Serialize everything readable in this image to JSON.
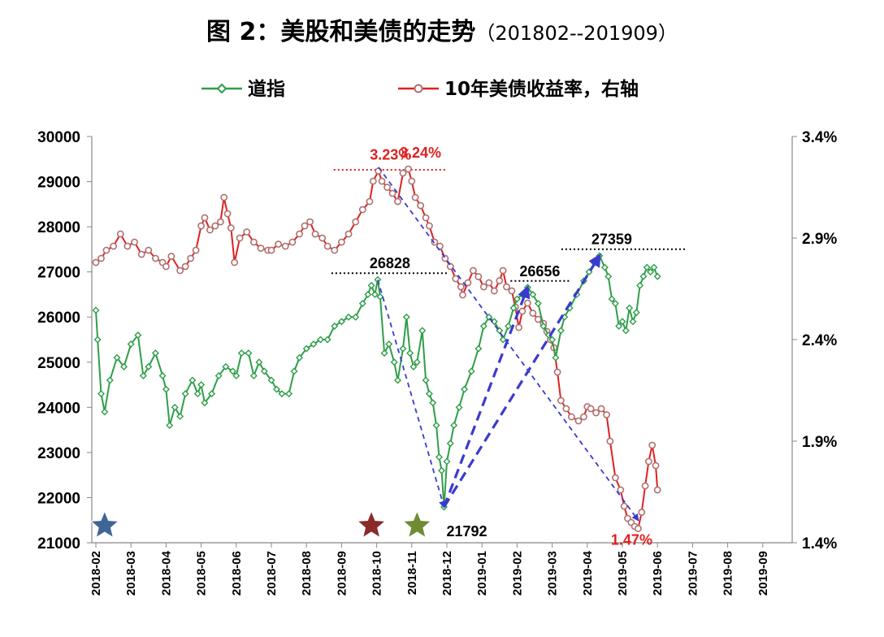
{
  "title": {
    "main": "图 2：美股和美债的走势",
    "sub": "（201802--201909）"
  },
  "chart_data": {
    "type": "line",
    "title": "图 2：美股和美债的走势（201802--201909）",
    "legend": [
      "道指",
      "10年美债收益率，右轴"
    ],
    "legend_position": "top",
    "x_labels": [
      "2018-02",
      "2018-03",
      "2018-04",
      "2018-05",
      "2018-06",
      "2018-07",
      "2018-08",
      "2018-09",
      "2018-10",
      "2018-11",
      "2018-12",
      "2019-01",
      "2019-02",
      "2019-03",
      "2019-04",
      "2019-05",
      "2019-06",
      "2019-07",
      "2019-08",
      "2019-09"
    ],
    "y_left": {
      "min": 21000,
      "max": 30000,
      "ticks": [
        "30000",
        "29000",
        "28000",
        "27000",
        "26000",
        "25000",
        "24000",
        "23000",
        "22000",
        "21000"
      ]
    },
    "y_right": {
      "min": 1.4,
      "max": 3.4,
      "ticks": [
        "3.4%",
        "2.9%",
        "2.4%",
        "1.9%",
        "1.4%"
      ]
    },
    "series": [
      {
        "name": "道指",
        "axis": "left",
        "color": "#2e9e48",
        "points": [
          [
            0,
            26150
          ],
          [
            0.05,
            25500
          ],
          [
            0.15,
            24300
          ],
          [
            0.25,
            23900
          ],
          [
            0.4,
            24600
          ],
          [
            0.6,
            25100
          ],
          [
            0.8,
            24900
          ],
          [
            1.0,
            25400
          ],
          [
            1.2,
            25600
          ],
          [
            1.35,
            24700
          ],
          [
            1.5,
            24900
          ],
          [
            1.7,
            25200
          ],
          [
            1.9,
            24700
          ],
          [
            2.0,
            24400
          ],
          [
            2.1,
            23600
          ],
          [
            2.25,
            24000
          ],
          [
            2.4,
            23800
          ],
          [
            2.55,
            24300
          ],
          [
            2.75,
            24600
          ],
          [
            2.9,
            24300
          ],
          [
            3.0,
            24500
          ],
          [
            3.1,
            24100
          ],
          [
            3.3,
            24300
          ],
          [
            3.5,
            24700
          ],
          [
            3.7,
            24900
          ],
          [
            3.9,
            24800
          ],
          [
            4.0,
            24700
          ],
          [
            4.15,
            25200
          ],
          [
            4.35,
            25200
          ],
          [
            4.5,
            24700
          ],
          [
            4.65,
            25000
          ],
          [
            4.8,
            24800
          ],
          [
            5.0,
            24600
          ],
          [
            5.15,
            24400
          ],
          [
            5.3,
            24300
          ],
          [
            5.5,
            24300
          ],
          [
            5.65,
            24800
          ],
          [
            5.8,
            25100
          ],
          [
            6.0,
            25300
          ],
          [
            6.2,
            25400
          ],
          [
            6.4,
            25500
          ],
          [
            6.6,
            25500
          ],
          [
            6.8,
            25800
          ],
          [
            7.0,
            25900
          ],
          [
            7.2,
            26000
          ],
          [
            7.4,
            26000
          ],
          [
            7.6,
            26300
          ],
          [
            7.75,
            26500
          ],
          [
            7.85,
            26700
          ],
          [
            7.95,
            26500
          ],
          [
            8.03,
            26828
          ],
          [
            8.1,
            26450
          ],
          [
            8.22,
            25200
          ],
          [
            8.35,
            25400
          ],
          [
            8.5,
            25000
          ],
          [
            8.6,
            24600
          ],
          [
            8.75,
            25300
          ],
          [
            8.85,
            26000
          ],
          [
            8.95,
            25200
          ],
          [
            9.05,
            24900
          ],
          [
            9.15,
            25000
          ],
          [
            9.3,
            25700
          ],
          [
            9.4,
            24600
          ],
          [
            9.5,
            24300
          ],
          [
            9.6,
            24100
          ],
          [
            9.7,
            23600
          ],
          [
            9.78,
            22900
          ],
          [
            9.85,
            22600
          ],
          [
            9.92,
            21792
          ],
          [
            10.0,
            22800
          ],
          [
            10.1,
            23200
          ],
          [
            10.2,
            23600
          ],
          [
            10.35,
            24000
          ],
          [
            10.5,
            24400
          ],
          [
            10.7,
            24800
          ],
          [
            10.9,
            25300
          ],
          [
            11.05,
            25800
          ],
          [
            11.2,
            26000
          ],
          [
            11.35,
            25900
          ],
          [
            11.5,
            25700
          ],
          [
            11.6,
            25500
          ],
          [
            11.75,
            25800
          ],
          [
            11.9,
            26200
          ],
          [
            12.0,
            26400
          ],
          [
            12.15,
            26500
          ],
          [
            12.3,
            26656
          ],
          [
            12.45,
            26500
          ],
          [
            12.6,
            26300
          ],
          [
            12.75,
            25800
          ],
          [
            12.9,
            25600
          ],
          [
            13.0,
            25500
          ],
          [
            13.1,
            25100
          ],
          [
            13.25,
            25700
          ],
          [
            13.35,
            26000
          ],
          [
            13.5,
            26200
          ],
          [
            13.7,
            26500
          ],
          [
            13.9,
            26800
          ],
          [
            14.05,
            27000
          ],
          [
            14.2,
            27200
          ],
          [
            14.35,
            27359
          ],
          [
            14.5,
            27100
          ],
          [
            14.6,
            26900
          ],
          [
            14.7,
            26400
          ],
          [
            14.8,
            26300
          ],
          [
            14.9,
            25800
          ],
          [
            15.0,
            25900
          ],
          [
            15.1,
            25700
          ],
          [
            15.2,
            26200
          ],
          [
            15.3,
            25900
          ],
          [
            15.4,
            26100
          ],
          [
            15.5,
            26700
          ],
          [
            15.6,
            26900
          ],
          [
            15.7,
            27100
          ],
          [
            15.8,
            27000
          ],
          [
            15.9,
            27100
          ],
          [
            16.0,
            26900
          ]
        ]
      },
      {
        "name": "10年美债收益率，右轴",
        "axis": "right",
        "color": "#e02020",
        "marker_color": "#b07070",
        "points": [
          [
            0,
            2.78
          ],
          [
            0.15,
            2.8
          ],
          [
            0.3,
            2.84
          ],
          [
            0.5,
            2.86
          ],
          [
            0.7,
            2.92
          ],
          [
            0.9,
            2.86
          ],
          [
            1.1,
            2.88
          ],
          [
            1.3,
            2.82
          ],
          [
            1.5,
            2.84
          ],
          [
            1.7,
            2.8
          ],
          [
            1.9,
            2.78
          ],
          [
            2.0,
            2.76
          ],
          [
            2.15,
            2.81
          ],
          [
            2.4,
            2.74
          ],
          [
            2.55,
            2.76
          ],
          [
            2.7,
            2.8
          ],
          [
            2.85,
            2.84
          ],
          [
            3.0,
            2.96
          ],
          [
            3.1,
            3.0
          ],
          [
            3.25,
            2.94
          ],
          [
            3.4,
            2.96
          ],
          [
            3.55,
            2.98
          ],
          [
            3.65,
            3.1
          ],
          [
            3.75,
            3.02
          ],
          [
            3.85,
            2.95
          ],
          [
            3.95,
            2.78
          ],
          [
            4.1,
            2.9
          ],
          [
            4.3,
            2.93
          ],
          [
            4.5,
            2.88
          ],
          [
            4.7,
            2.85
          ],
          [
            4.9,
            2.84
          ],
          [
            5.0,
            2.84
          ],
          [
            5.2,
            2.87
          ],
          [
            5.4,
            2.86
          ],
          [
            5.6,
            2.88
          ],
          [
            5.8,
            2.92
          ],
          [
            5.95,
            2.96
          ],
          [
            6.1,
            2.98
          ],
          [
            6.25,
            2.92
          ],
          [
            6.45,
            2.9
          ],
          [
            6.6,
            2.86
          ],
          [
            6.8,
            2.84
          ],
          [
            7.0,
            2.88
          ],
          [
            7.2,
            2.92
          ],
          [
            7.4,
            2.98
          ],
          [
            7.6,
            3.04
          ],
          [
            7.8,
            3.08
          ],
          [
            7.9,
            3.18
          ],
          [
            8.05,
            3.23
          ],
          [
            8.15,
            3.18
          ],
          [
            8.3,
            3.15
          ],
          [
            8.45,
            3.12
          ],
          [
            8.6,
            3.08
          ],
          [
            8.75,
            3.22
          ],
          [
            8.9,
            3.24
          ],
          [
            9.0,
            3.18
          ],
          [
            9.1,
            3.1
          ],
          [
            9.25,
            3.06
          ],
          [
            9.4,
            3.0
          ],
          [
            9.5,
            2.96
          ],
          [
            9.65,
            2.88
          ],
          [
            9.8,
            2.86
          ],
          [
            9.95,
            2.8
          ],
          [
            10.1,
            2.76
          ],
          [
            10.25,
            2.7
          ],
          [
            10.4,
            2.66
          ],
          [
            10.45,
            2.62
          ],
          [
            10.6,
            2.68
          ],
          [
            10.75,
            2.74
          ],
          [
            10.9,
            2.71
          ],
          [
            11.05,
            2.66
          ],
          [
            11.2,
            2.68
          ],
          [
            11.35,
            2.64
          ],
          [
            11.5,
            2.69
          ],
          [
            11.6,
            2.74
          ],
          [
            11.7,
            2.66
          ],
          [
            11.85,
            2.64
          ],
          [
            11.95,
            2.56
          ],
          [
            12.05,
            2.46
          ],
          [
            12.15,
            2.54
          ],
          [
            12.3,
            2.58
          ],
          [
            12.45,
            2.53
          ],
          [
            12.6,
            2.5
          ],
          [
            12.75,
            2.48
          ],
          [
            12.85,
            2.44
          ],
          [
            12.95,
            2.4
          ],
          [
            13.05,
            2.36
          ],
          [
            13.15,
            2.24
          ],
          [
            13.25,
            2.1
          ],
          [
            13.4,
            2.06
          ],
          [
            13.55,
            2.02
          ],
          [
            13.75,
            2.0
          ],
          [
            13.9,
            2.02
          ],
          [
            14.0,
            2.07
          ],
          [
            14.1,
            2.06
          ],
          [
            14.25,
            2.04
          ],
          [
            14.4,
            2.06
          ],
          [
            14.55,
            2.03
          ],
          [
            14.65,
            1.9
          ],
          [
            14.8,
            1.72
          ],
          [
            14.95,
            1.66
          ],
          [
            15.05,
            1.58
          ],
          [
            15.15,
            1.52
          ],
          [
            15.25,
            1.5
          ],
          [
            15.35,
            1.48
          ],
          [
            15.45,
            1.47
          ],
          [
            15.55,
            1.55
          ],
          [
            15.65,
            1.68
          ],
          [
            15.75,
            1.8
          ],
          [
            15.85,
            1.88
          ],
          [
            15.95,
            1.78
          ],
          [
            16.0,
            1.66
          ]
        ]
      }
    ],
    "annotations": {
      "labels": [
        {
          "text": "26828",
          "x": 8.03,
          "y": 26828,
          "axis": "left",
          "color": "#000000"
        },
        {
          "text": "21792",
          "x": 9.92,
          "y": 21792,
          "axis": "left",
          "color": "#000000"
        },
        {
          "text": "26656",
          "x": 12.3,
          "y": 26656,
          "axis": "left",
          "color": "#000000"
        },
        {
          "text": "27359",
          "x": 14.35,
          "y": 27359,
          "axis": "left",
          "color": "#000000"
        },
        {
          "text": "3.23%",
          "x": 8.05,
          "y": 3.23,
          "axis": "right",
          "color": "#e02020"
        },
        {
          "text": "3.24%",
          "x": 8.9,
          "y": 3.24,
          "axis": "right",
          "color": "#e02020"
        },
        {
          "text": "1.47%",
          "x": 15.45,
          "y": 1.47,
          "axis": "right",
          "color": "#e02020"
        }
      ],
      "stars": [
        {
          "x": 0.25,
          "color": "#3f6596"
        },
        {
          "x": 7.85,
          "color": "#8a2a2a"
        },
        {
          "x": 9.15,
          "color": "#6f8c35"
        }
      ],
      "trend_arrows": [
        {
          "from": [
            8.03,
            26828
          ],
          "to": [
            9.92,
            21792
          ],
          "style": "thin"
        },
        {
          "from": [
            8.05,
            29320
          ],
          "to": [
            15.45,
            21500
          ],
          "style": "thin"
        },
        {
          "from": [
            9.92,
            21792
          ],
          "to": [
            12.3,
            26656
          ],
          "style": "thick"
        },
        {
          "from": [
            9.92,
            21792
          ],
          "to": [
            14.35,
            27359
          ],
          "style": "thick"
        }
      ]
    }
  }
}
